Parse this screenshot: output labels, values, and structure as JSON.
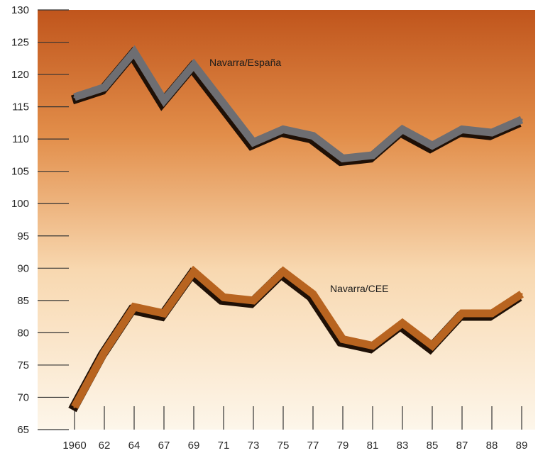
{
  "chart_data": {
    "type": "line",
    "x": [
      "1960",
      "62",
      "64",
      "67",
      "69",
      "71",
      "73",
      "75",
      "77",
      "79",
      "81",
      "83",
      "85",
      "87",
      "88",
      "89"
    ],
    "ylim": [
      65,
      130
    ],
    "yticks": [
      65,
      70,
      75,
      80,
      85,
      90,
      95,
      100,
      105,
      110,
      115,
      120,
      125,
      130
    ],
    "background": {
      "top": "#c0551c",
      "bottom": "#fdf6ea"
    },
    "series": [
      {
        "name": "Navarra/España",
        "color": "#6e6e72",
        "values": [
          116.5,
          118,
          123.5,
          116,
          121.5,
          115.5,
          109.5,
          111.5,
          110.5,
          107,
          107.5,
          111.5,
          109,
          111.5,
          111,
          113
        ]
      },
      {
        "name": "Navarra/CEE",
        "color": "#b86420",
        "values": [
          68.5,
          77,
          84,
          83,
          89.5,
          85.5,
          85,
          89.5,
          86,
          79,
          78,
          81.5,
          78,
          83,
          83,
          86
        ]
      }
    ]
  }
}
